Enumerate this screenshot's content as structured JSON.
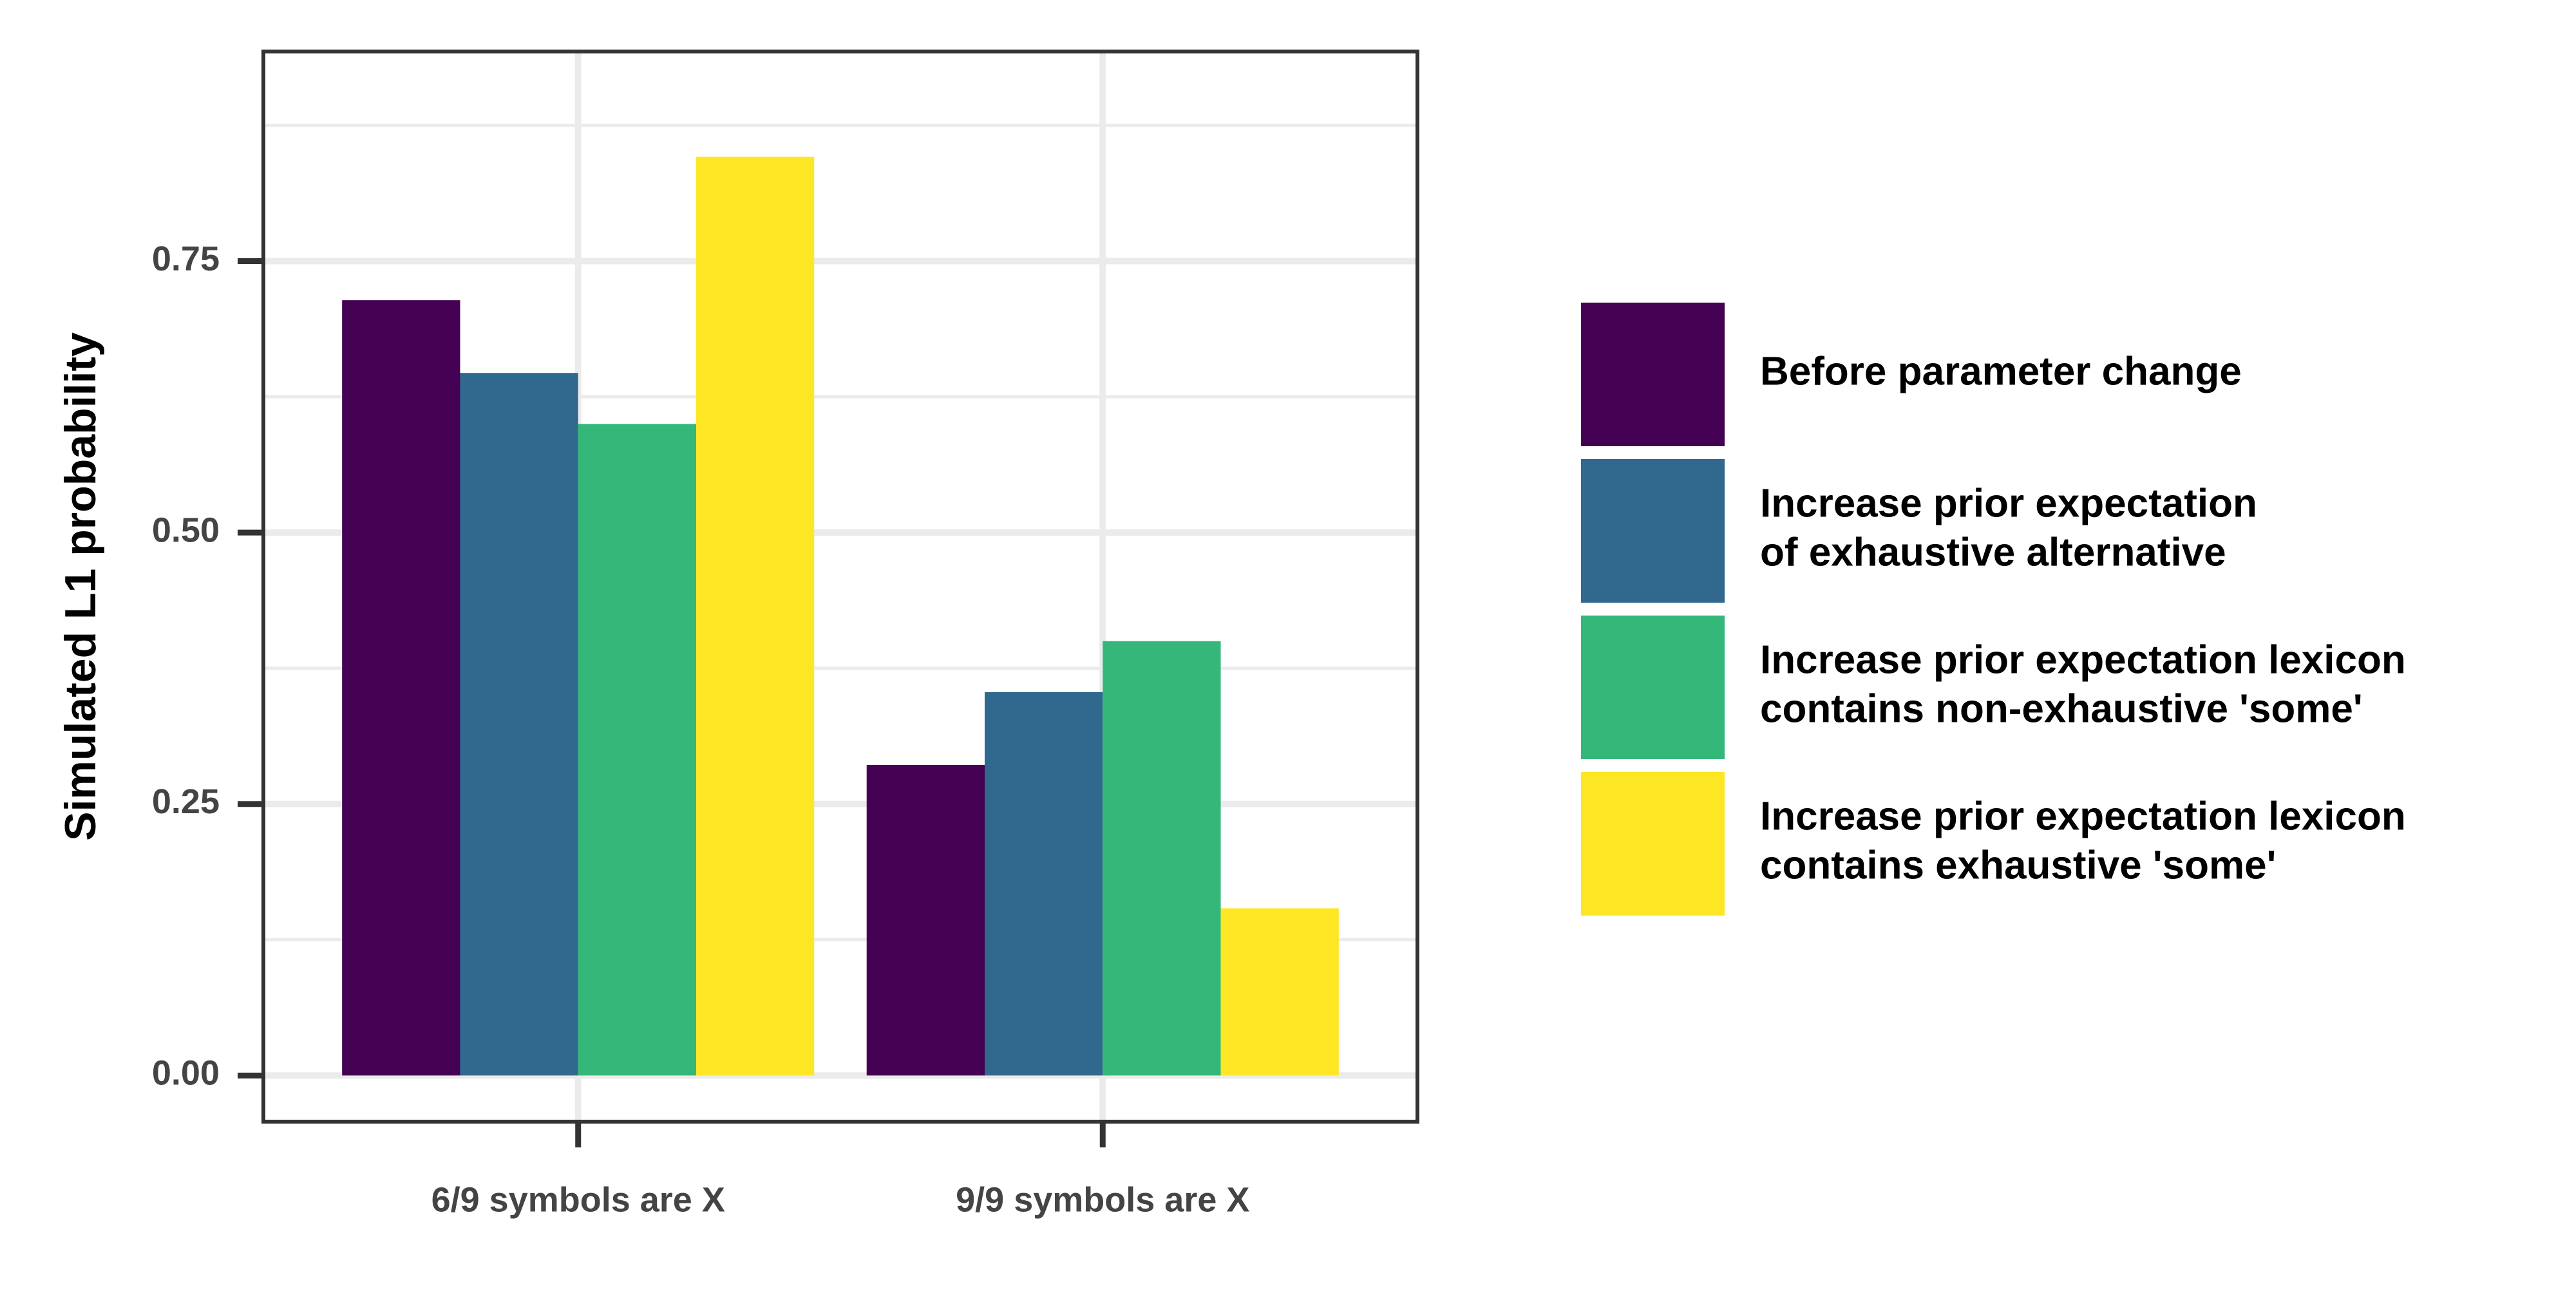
{
  "chart_data": {
    "type": "bar",
    "title": "",
    "xlabel": "",
    "ylabel": "Simulated L1 probability",
    "categories": [
      "6/9 symbols are X",
      "9/9 symbols are X"
    ],
    "series": [
      {
        "name": "Before parameter change",
        "color": "#440154",
        "values": [
          0.714,
          0.286
        ]
      },
      {
        "name": "Increase prior expectation\nof exhaustive alternative",
        "color": "#31688E",
        "values": [
          0.647,
          0.353
        ]
      },
      {
        "name": "Increase prior expectation lexicon\ncontains non-exhaustive 'some'",
        "color": "#35B779",
        "values": [
          0.6,
          0.4
        ]
      },
      {
        "name": "Increase prior expectation lexicon\ncontains exhaustive 'some'",
        "color": "#FDE725",
        "values": [
          0.846,
          0.154
        ]
      }
    ],
    "ylim": [
      -0.0425,
      0.943
    ],
    "yticks": [
      0.0,
      0.25,
      0.5,
      0.75
    ],
    "ytick_labels": [
      "0.00",
      "0.25",
      "0.50",
      "0.75"
    ],
    "grid": true,
    "legend_position": "right"
  }
}
